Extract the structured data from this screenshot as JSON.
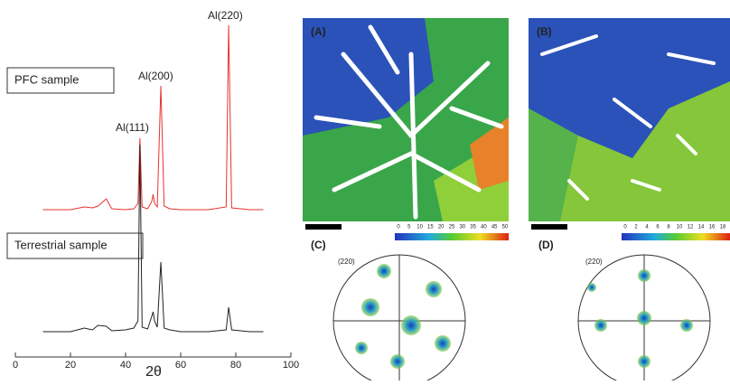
{
  "chart_data": {
    "type": "line",
    "xlabel": "2θ",
    "x": [
      10,
      20,
      25,
      28,
      30,
      33,
      35,
      40,
      43,
      44.5,
      45.2,
      46,
      48,
      49.5,
      50,
      50.5,
      51.5,
      52.8,
      54,
      56,
      60,
      65,
      70,
      76.5,
      77.4,
      78.5,
      85,
      90
    ],
    "series": [
      {
        "name": "PFC sample",
        "color": "#e8312f",
        "values": [
          163,
          163,
          166,
          165,
          167,
          175,
          164,
          163,
          164,
          170,
          242,
          166,
          164,
          172,
          180,
          170,
          166,
          300,
          167,
          164,
          163,
          163,
          163,
          166,
          367,
          165,
          163,
          163
        ]
      },
      {
        "name": "Terrestrial sample",
        "color": "#222222",
        "values": [
          28,
          28,
          32,
          30,
          35,
          34,
          29,
          30,
          32,
          40,
          235,
          33,
          31,
          45,
          50,
          40,
          33,
          105,
          32,
          30,
          28,
          28,
          28,
          30,
          55,
          30,
          28,
          28
        ]
      }
    ],
    "annotations": [
      "Al(111)",
      "Al(200)",
      "Al(220)"
    ],
    "xlim": [
      0,
      100
    ],
    "xticks": [
      0,
      20,
      40,
      60,
      80,
      100
    ],
    "ylim": [
      0,
      375
    ]
  },
  "panels": {
    "labels": [
      "(A)",
      "(B)",
      "(C)",
      "(D)"
    ],
    "pole_figure_label": "(220)",
    "colorbar_a": [
      "0",
      "5",
      "10",
      "15",
      "20",
      "25",
      "30",
      "35",
      "40",
      "45",
      "50"
    ],
    "colorbar_b": [
      "0",
      "2",
      "4",
      "6",
      "8",
      "10",
      "12",
      "14",
      "16",
      "18"
    ]
  }
}
